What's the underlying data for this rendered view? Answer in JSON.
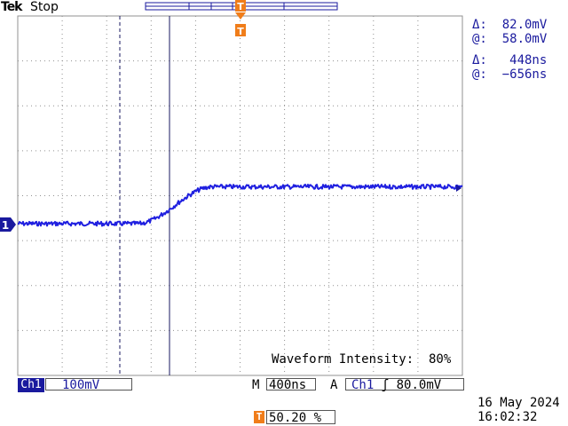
{
  "header": {
    "logo": "Tek",
    "run_state": "Stop"
  },
  "readouts": {
    "v_delta": "Δ:  82.0mV",
    "v_at": "@:  58.0mV",
    "t_delta": "Δ:   448ns",
    "t_at": "@:  −656ns"
  },
  "intensity": "Waveform Intensity:  80%",
  "channel": {
    "label": "Ch1",
    "scale": "100mV",
    "marker": "1",
    "color": "#1a1a9e"
  },
  "horizontal": {
    "m_label": "M",
    "scale": "400ns"
  },
  "trigger": {
    "mode": "A",
    "source": "Ch1",
    "slope_symbol": "ʃ",
    "level": "80.0mV",
    "marker": "T",
    "position": "50.20 %",
    "color": "#f07d1a"
  },
  "datetime": {
    "date": "16 May 2024",
    "time": "16:02:32"
  },
  "waveform": {
    "baseline_low_mV": -28,
    "baseline_high_mV": 54,
    "rise_start_ns": -920,
    "rise_end_ns": -250
  },
  "colors": {
    "grid": "#909090",
    "trace": "#2020e0",
    "cursor": "#1a1a60"
  }
}
